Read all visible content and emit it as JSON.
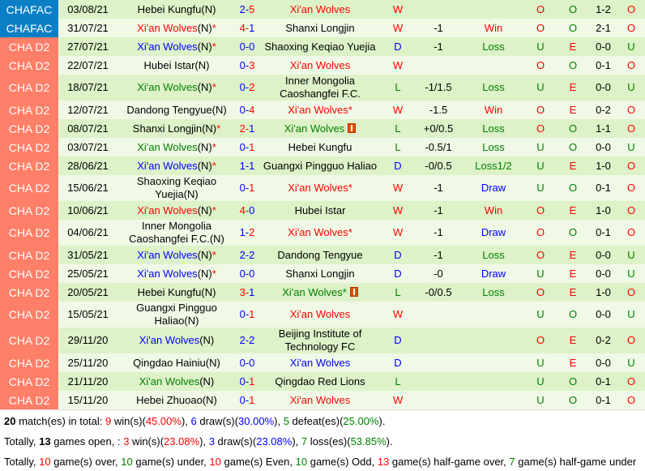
{
  "colors": {
    "win": "#FF0000",
    "draw": "#0000FF",
    "loss": "#008000",
    "chafac_bg": "#0A7FC5",
    "d2_bg": "#FF7F69"
  },
  "icons": {
    "flag": "red-flag-icon"
  },
  "rows": [
    {
      "league": "CHAFAC",
      "date": "03/08/21",
      "home": {
        "name": "Hebei Kungfu",
        "suffix": "(N)",
        "star": false,
        "color": ""
      },
      "score": [
        2,
        5
      ],
      "away": {
        "name": "Xi'an Wolves",
        "star": false,
        "color": "red",
        "flag": false
      },
      "wl": "W",
      "hc": "",
      "hcres": "",
      "ou": "O",
      "oe": "O",
      "ht": "1-2",
      "htou": "O"
    },
    {
      "league": "CHAFAC",
      "date": "31/07/21",
      "home": {
        "name": "Xi'an Wolves",
        "suffix": "(N)",
        "star": true,
        "color": "red"
      },
      "score": [
        4,
        1
      ],
      "away": {
        "name": "Shanxi Longjin",
        "star": false,
        "color": "",
        "flag": false
      },
      "wl": "W",
      "hc": "-1",
      "hcres": "Win",
      "ou": "O",
      "oe": "O",
      "ht": "2-1",
      "htou": "O"
    },
    {
      "league": "CHA D2",
      "date": "27/07/21",
      "home": {
        "name": "Xi'an Wolves",
        "suffix": "(N)",
        "star": true,
        "color": "blue"
      },
      "score": [
        0,
        0
      ],
      "away": {
        "name": "Shaoxing Keqiao Yuejia",
        "star": false,
        "color": "",
        "flag": false
      },
      "wl": "D",
      "hc": "-1",
      "hcres": "Loss",
      "ou": "U",
      "oe": "E",
      "ht": "0-0",
      "htou": "U"
    },
    {
      "league": "CHA D2",
      "date": "22/07/21",
      "home": {
        "name": "Hubei Istar",
        "suffix": "(N)",
        "star": false,
        "color": ""
      },
      "score": [
        0,
        3
      ],
      "away": {
        "name": "Xi'an Wolves",
        "star": false,
        "color": "red",
        "flag": false
      },
      "wl": "W",
      "hc": "",
      "hcres": "",
      "ou": "O",
      "oe": "O",
      "ht": "0-1",
      "htou": "O"
    },
    {
      "league": "CHA D2",
      "date": "18/07/21",
      "home": {
        "name": "Xi'an Wolves",
        "suffix": "(N)",
        "star": true,
        "color": "green"
      },
      "score": [
        0,
        2
      ],
      "away": {
        "name": "Inner Mongolia Caoshangfei F.C.",
        "star": false,
        "color": "",
        "flag": false
      },
      "wl": "L",
      "hc": "-1/1.5",
      "hcres": "Loss",
      "ou": "U",
      "oe": "E",
      "ht": "0-0",
      "htou": "U"
    },
    {
      "league": "CHA D2",
      "date": "12/07/21",
      "home": {
        "name": "Dandong Tengyue",
        "suffix": "(N)",
        "star": false,
        "color": ""
      },
      "score": [
        0,
        4
      ],
      "away": {
        "name": "Xi'an Wolves",
        "star": true,
        "color": "red",
        "flag": false
      },
      "wl": "W",
      "hc": "-1.5",
      "hcres": "Win",
      "ou": "O",
      "oe": "E",
      "ht": "0-2",
      "htou": "O"
    },
    {
      "league": "CHA D2",
      "date": "08/07/21",
      "home": {
        "name": "Shanxi Longjin",
        "suffix": "(N)",
        "star": true,
        "color": ""
      },
      "score": [
        2,
        1
      ],
      "away": {
        "name": "Xi'an Wolves",
        "star": false,
        "color": "green",
        "flag": true
      },
      "wl": "L",
      "hc": "+0/0.5",
      "hcres": "Loss",
      "ou": "O",
      "oe": "O",
      "ht": "1-1",
      "htou": "O"
    },
    {
      "league": "CHA D2",
      "date": "03/07/21",
      "home": {
        "name": "Xi'an Wolves",
        "suffix": "(N)",
        "star": true,
        "color": "green"
      },
      "score": [
        0,
        1
      ],
      "away": {
        "name": "Hebei Kungfu",
        "star": false,
        "color": "",
        "flag": false
      },
      "wl": "L",
      "hc": "-0.5/1",
      "hcres": "Loss",
      "ou": "U",
      "oe": "O",
      "ht": "0-0",
      "htou": "U"
    },
    {
      "league": "CHA D2",
      "date": "28/06/21",
      "home": {
        "name": "Xi'an Wolves",
        "suffix": "(N)",
        "star": true,
        "color": "blue"
      },
      "score": [
        1,
        1
      ],
      "away": {
        "name": "Guangxi Pingguo Haliao",
        "star": false,
        "color": "",
        "flag": false
      },
      "wl": "D",
      "hc": "-0/0.5",
      "hcres": "Loss1/2",
      "ou": "U",
      "oe": "E",
      "ht": "1-0",
      "htou": "O"
    },
    {
      "league": "CHA D2",
      "date": "15/06/21",
      "home": {
        "name": "Shaoxing Keqiao Yuejia",
        "suffix": "(N)",
        "star": false,
        "color": ""
      },
      "score": [
        0,
        1
      ],
      "away": {
        "name": "Xi'an Wolves",
        "star": true,
        "color": "red",
        "flag": false
      },
      "wl": "W",
      "hc": "-1",
      "hcres": "Draw",
      "ou": "U",
      "oe": "O",
      "ht": "0-1",
      "htou": "O"
    },
    {
      "league": "CHA D2",
      "date": "10/06/21",
      "home": {
        "name": "Xi'an Wolves",
        "suffix": "(N)",
        "star": true,
        "color": "red"
      },
      "score": [
        4,
        0
      ],
      "away": {
        "name": "Hubei Istar",
        "star": false,
        "color": "",
        "flag": false
      },
      "wl": "W",
      "hc": "-1",
      "hcres": "Win",
      "ou": "O",
      "oe": "E",
      "ht": "1-0",
      "htou": "O"
    },
    {
      "league": "CHA D2",
      "date": "04/06/21",
      "home": {
        "name": "Inner Mongolia Caoshangfei F.C.",
        "suffix": "(N)",
        "star": false,
        "color": ""
      },
      "score": [
        1,
        2
      ],
      "away": {
        "name": "Xi'an Wolves",
        "star": true,
        "color": "red",
        "flag": false
      },
      "wl": "W",
      "hc": "-1",
      "hcres": "Draw",
      "ou": "O",
      "oe": "O",
      "ht": "0-1",
      "htou": "O"
    },
    {
      "league": "CHA D2",
      "date": "31/05/21",
      "home": {
        "name": "Xi'an Wolves",
        "suffix": "(N)",
        "star": true,
        "color": "blue"
      },
      "score": [
        2,
        2
      ],
      "away": {
        "name": "Dandong Tengyue",
        "star": false,
        "color": "",
        "flag": false
      },
      "wl": "D",
      "hc": "-1",
      "hcres": "Loss",
      "ou": "O",
      "oe": "E",
      "ht": "0-0",
      "htou": "U"
    },
    {
      "league": "CHA D2",
      "date": "25/05/21",
      "home": {
        "name": "Xi'an Wolves",
        "suffix": "(N)",
        "star": true,
        "color": "blue"
      },
      "score": [
        0,
        0
      ],
      "away": {
        "name": "Shanxi Longjin",
        "star": false,
        "color": "",
        "flag": false
      },
      "wl": "D",
      "hc": "-0",
      "hcres": "Draw",
      "ou": "U",
      "oe": "E",
      "ht": "0-0",
      "htou": "U"
    },
    {
      "league": "CHA D2",
      "date": "20/05/21",
      "home": {
        "name": "Hebei Kungfu",
        "suffix": "(N)",
        "star": false,
        "color": ""
      },
      "score": [
        3,
        1
      ],
      "away": {
        "name": "Xi'an Wolves",
        "star": true,
        "color": "green",
        "flag": true
      },
      "wl": "L",
      "hc": "-0/0.5",
      "hcres": "Loss",
      "ou": "O",
      "oe": "E",
      "ht": "1-0",
      "htou": "O"
    },
    {
      "league": "CHA D2",
      "date": "15/05/21",
      "home": {
        "name": "Guangxi Pingguo Haliao",
        "suffix": "(N)",
        "star": false,
        "color": ""
      },
      "score": [
        0,
        1
      ],
      "away": {
        "name": "Xi'an Wolves",
        "star": false,
        "color": "red",
        "flag": false
      },
      "wl": "W",
      "hc": "",
      "hcres": "",
      "ou": "U",
      "oe": "O",
      "ht": "0-0",
      "htou": "U"
    },
    {
      "league": "CHA D2",
      "date": "29/11/20",
      "home": {
        "name": "Xi'an Wolves",
        "suffix": "(N)",
        "star": false,
        "color": "blue"
      },
      "score": [
        2,
        2
      ],
      "away": {
        "name": "Beijing Institute of Technology FC",
        "star": false,
        "color": "",
        "flag": false
      },
      "wl": "D",
      "hc": "",
      "hcres": "",
      "ou": "O",
      "oe": "E",
      "ht": "0-2",
      "htou": "O"
    },
    {
      "league": "CHA D2",
      "date": "25/11/20",
      "home": {
        "name": "Qingdao Hainiu",
        "suffix": "(N)",
        "star": false,
        "color": ""
      },
      "score": [
        0,
        0
      ],
      "away": {
        "name": "Xi'an Wolves",
        "star": false,
        "color": "blue",
        "flag": false
      },
      "wl": "D",
      "hc": "",
      "hcres": "",
      "ou": "U",
      "oe": "E",
      "ht": "0-0",
      "htou": "U"
    },
    {
      "league": "CHA D2",
      "date": "21/11/20",
      "home": {
        "name": "Xi'an Wolves",
        "suffix": "(N)",
        "star": false,
        "color": "green"
      },
      "score": [
        0,
        1
      ],
      "away": {
        "name": "Qingdao Red Lions",
        "star": false,
        "color": "",
        "flag": false
      },
      "wl": "L",
      "hc": "",
      "hcres": "",
      "ou": "U",
      "oe": "O",
      "ht": "0-1",
      "htou": "O"
    },
    {
      "league": "CHA D2",
      "date": "15/11/20",
      "home": {
        "name": "Hebei Zhuoao",
        "suffix": "(N)",
        "star": false,
        "color": ""
      },
      "score": [
        0,
        1
      ],
      "away": {
        "name": "Xi'an Wolves",
        "star": false,
        "color": "red",
        "flag": false
      },
      "wl": "W",
      "hc": "",
      "hcres": "",
      "ou": "U",
      "oe": "O",
      "ht": "0-1",
      "htou": "O"
    }
  ],
  "summary": [
    [
      {
        "t": "20",
        "c": "bold"
      },
      {
        "t": " match(es) in total: "
      },
      {
        "t": "9",
        "c": "red"
      },
      {
        "t": " win(s)("
      },
      {
        "t": "45.00%",
        "c": "red"
      },
      {
        "t": "), "
      },
      {
        "t": "6",
        "c": "blue"
      },
      {
        "t": " draw(s)("
      },
      {
        "t": "30.00%",
        "c": "blue"
      },
      {
        "t": "), "
      },
      {
        "t": "5",
        "c": "green"
      },
      {
        "t": " defeat(es)("
      },
      {
        "t": "25.00%",
        "c": "green"
      },
      {
        "t": ")."
      }
    ],
    [
      {
        "t": "Totally, "
      },
      {
        "t": "13",
        "c": "bold"
      },
      {
        "t": " games open, : "
      },
      {
        "t": "3",
        "c": "red"
      },
      {
        "t": " win(s)("
      },
      {
        "t": "23.08%",
        "c": "red"
      },
      {
        "t": "), "
      },
      {
        "t": "3",
        "c": "blue"
      },
      {
        "t": " draw(s)("
      },
      {
        "t": "23.08%",
        "c": "blue"
      },
      {
        "t": "), "
      },
      {
        "t": "7",
        "c": "green"
      },
      {
        "t": " loss(es)("
      },
      {
        "t": "53.85%",
        "c": "green"
      },
      {
        "t": ")."
      }
    ],
    [
      {
        "t": "Totally, "
      },
      {
        "t": "10",
        "c": "red"
      },
      {
        "t": " game(s) over, "
      },
      {
        "t": "10",
        "c": "green"
      },
      {
        "t": " game(s) under, "
      },
      {
        "t": "10",
        "c": "red"
      },
      {
        "t": " game(s) Even, "
      },
      {
        "t": "10",
        "c": "green"
      },
      {
        "t": " game(s) Odd, "
      },
      {
        "t": "13",
        "c": "red"
      },
      {
        "t": " game(s) half-game over, "
      },
      {
        "t": "7",
        "c": "green"
      },
      {
        "t": " game(s) half-game under"
      }
    ]
  ]
}
